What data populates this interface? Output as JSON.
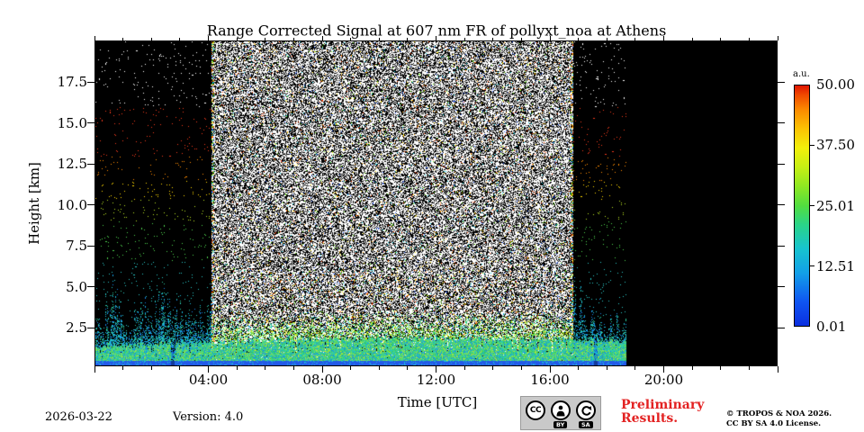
{
  "title": "Range Corrected Signal at 607 nm FR of pollyxt_noa at Athens",
  "axes": {
    "xlabel": "Time [UTC]",
    "ylabel": "Height [km]",
    "x_range_hours": [
      0,
      24
    ],
    "x_major": [
      {
        "hour": 4,
        "label": "04:00"
      },
      {
        "hour": 8,
        "label": "08:00"
      },
      {
        "hour": 12,
        "label": "12:00"
      },
      {
        "hour": 16,
        "label": "16:00"
      },
      {
        "hour": 20,
        "label": "20:00"
      }
    ],
    "x_minor_step_hours": 1,
    "y_range_km": [
      0.15,
      20.05
    ],
    "y_major": [
      {
        "km": 2.5,
        "label": "2.5"
      },
      {
        "km": 5.0,
        "label": "5.0"
      },
      {
        "km": 7.5,
        "label": "7.5"
      },
      {
        "km": 10.0,
        "label": "10.0"
      },
      {
        "km": 12.5,
        "label": "12.5"
      },
      {
        "km": 15.0,
        "label": "15.0"
      },
      {
        "km": 17.5,
        "label": "17.5"
      }
    ]
  },
  "colorbar": {
    "unit_label": "a.u.",
    "tick_labels": [
      "50.00",
      "37.50",
      "25.01",
      "12.51",
      "0.01"
    ],
    "value_range": [
      0.01,
      50.0
    ],
    "gradient_bottom_to_top": [
      {
        "at": 0.0,
        "color": "#0b2fe0"
      },
      {
        "at": 0.1,
        "color": "#0f55f2"
      },
      {
        "at": 0.22,
        "color": "#12a0e8"
      },
      {
        "at": 0.32,
        "color": "#17c3cf"
      },
      {
        "at": 0.42,
        "color": "#2ad489"
      },
      {
        "at": 0.5,
        "color": "#52dd3f"
      },
      {
        "at": 0.58,
        "color": "#8ee822"
      },
      {
        "at": 0.66,
        "color": "#c6ef14"
      },
      {
        "at": 0.74,
        "color": "#f2ef0a"
      },
      {
        "at": 0.82,
        "color": "#fbc303"
      },
      {
        "at": 0.9,
        "color": "#fb8a00"
      },
      {
        "at": 0.96,
        "color": "#f04a00"
      },
      {
        "at": 1.0,
        "color": "#e01400"
      }
    ]
  },
  "footer": {
    "date": "2026-03-22",
    "version": "Version: 4.0",
    "preliminary_line1": "Preliminary",
    "preliminary_line2": "Results.",
    "preliminary_color": "#e32222",
    "copyright_line1": "© TROPOS & NOA 2026.",
    "copyright_line2": "CC BY SA 4.0 License.",
    "cc_badge": {
      "cc": "CC",
      "by": "BY",
      "sa": "SA"
    }
  },
  "chart_data": {
    "type": "heatmap",
    "title": "Range Corrected Signal at 607 nm FR of pollyxt_noa at Athens",
    "xlabel": "Time [UTC]",
    "ylabel": "Height [km]",
    "x_ticks": [
      "04:00",
      "08:00",
      "12:00",
      "16:00",
      "20:00"
    ],
    "y_ticks": [
      2.5,
      5.0,
      7.5,
      10.0,
      12.5,
      15.0,
      17.5
    ],
    "x_range": [
      "00:00",
      "24:00"
    ],
    "y_range_km": [
      0.15,
      20.05
    ],
    "colorbar_label": "a.u.",
    "colorbar_ticks": [
      "50.00",
      "37.50",
      "25.01",
      "12.51",
      "0.01"
    ],
    "regions": [
      {
        "time": "00:00-04:06",
        "description": "nighttime: black background, sparse noise dots colored by height (white top, red/orange mid, yellow/green lower), cyan cloud/virga streaks below 7 km"
      },
      {
        "time": "04:06-16:50",
        "description": "daytime: dense white salt-and-pepper background-light noise at all heights with scattered colored pixels"
      },
      {
        "time": "16:50-18:43",
        "description": "evening: sparse height-colored noise dots, cyan streaks below ~5.5 km"
      },
      {
        "time": "18:43-24:00",
        "description": "no data (solid black)"
      }
    ],
    "features": [
      {
        "name": "aerosol boundary layer",
        "height_km": "0.4-2",
        "description": "bright green-cyan layer persisting all day until 18:43"
      },
      {
        "name": "near-surface overlap band",
        "height_km": "0-0.4",
        "description": "solid blue band at the lowest bins"
      }
    ],
    "render": {
      "seed": 42,
      "day_start_hour": 4.1,
      "day_end_hour": 16.83,
      "data_end_hour": 18.72,
      "night_dot_density": 0.017,
      "day_white_density": 0.52,
      "day_color_density": 0.08,
      "band_gaps_hours": [
        2.72,
        17.62
      ],
      "height_color_bands": [
        {
          "min_km": 16.0,
          "color": "#ffffff"
        },
        {
          "min_km": 13.0,
          "color": "#f4391c"
        },
        {
          "min_km": 11.5,
          "color": "#ff8c00"
        },
        {
          "min_km": 10.3,
          "color": "#ffd900"
        },
        {
          "min_km": 9.0,
          "color": "#b8e020"
        },
        {
          "min_km": 6.5,
          "color": "#4fd24f"
        },
        {
          "min_km": 0.0,
          "color": "#28c8c8"
        }
      ],
      "day_palette": [
        "#ff4000",
        "#ff9d00",
        "#ffe000",
        "#58dc00",
        "#00c8d8",
        "#2a60ff"
      ],
      "low_day_palette": [
        "#45d35a",
        "#8ee03a",
        "#d6ec1e",
        "#23c3c0"
      ],
      "pbl_palette": [
        "#2fc46a",
        "#45d378",
        "#5fdd62",
        "#23c3c0",
        "#2bd0a8",
        "#9ae34c",
        "#1e90e0"
      ],
      "speckle_palette": [
        "#1787e8",
        "#19b9dd",
        "#2bc79a"
      ],
      "surface_band": {
        "top_km": 0.45,
        "color": "#2359e8",
        "ground_color": "#0a2a9a"
      }
    }
  }
}
